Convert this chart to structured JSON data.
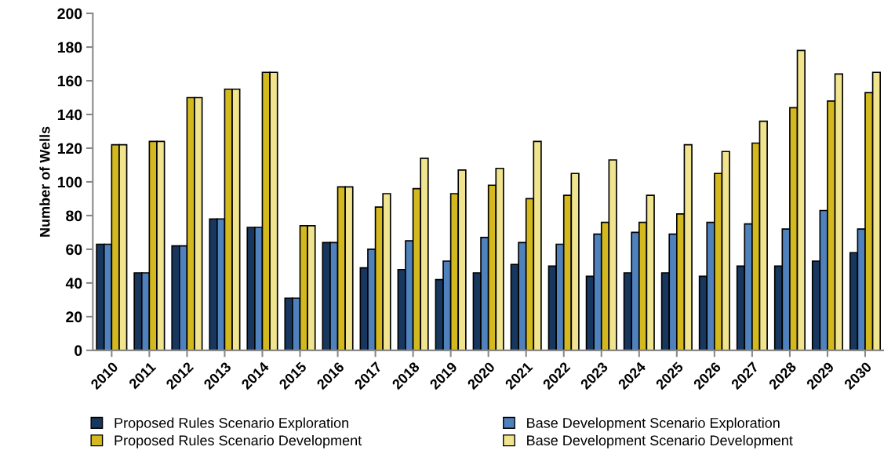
{
  "chart_data": {
    "type": "bar",
    "ylabel": "Number of Wells",
    "categories": [
      "2010",
      "2011",
      "2012",
      "2013",
      "2014",
      "2015",
      "2016",
      "2017",
      "2018",
      "2019",
      "2020",
      "2021",
      "2022",
      "2023",
      "2024",
      "2025",
      "2026",
      "2027",
      "2028",
      "2029",
      "2030"
    ],
    "series": [
      {
        "name": "Proposed Rules Scenario Exploration",
        "color": "#17375e",
        "values": [
          63,
          46,
          62,
          78,
          73,
          31,
          64,
          49,
          48,
          42,
          46,
          51,
          50,
          44,
          46,
          46,
          44,
          50,
          50,
          53,
          58
        ]
      },
      {
        "name": "Base Development Scenario Exploration",
        "color": "#4f81bd",
        "values": [
          63,
          46,
          62,
          78,
          73,
          31,
          64,
          60,
          65,
          53,
          67,
          64,
          63,
          69,
          70,
          69,
          76,
          75,
          72,
          83,
          72
        ]
      },
      {
        "name": "Proposed Rules Scenario Development",
        "color": "#d4b91e",
        "values": [
          122,
          124,
          150,
          155,
          165,
          74,
          97,
          85,
          96,
          93,
          98,
          90,
          92,
          76,
          76,
          81,
          105,
          123,
          144,
          148,
          153
        ]
      },
      {
        "name": "Base Development Scenario Development",
        "color": "#f1e48f",
        "values": [
          122,
          124,
          150,
          155,
          165,
          74,
          97,
          93,
          114,
          107,
          108,
          124,
          105,
          113,
          92,
          122,
          118,
          136,
          178,
          164,
          165
        ]
      }
    ],
    "ylim": [
      0,
      200
    ],
    "yticks": [
      0,
      20,
      40,
      60,
      80,
      100,
      120,
      140,
      160,
      180,
      200
    ],
    "grid": false,
    "legend": "bottom"
  }
}
